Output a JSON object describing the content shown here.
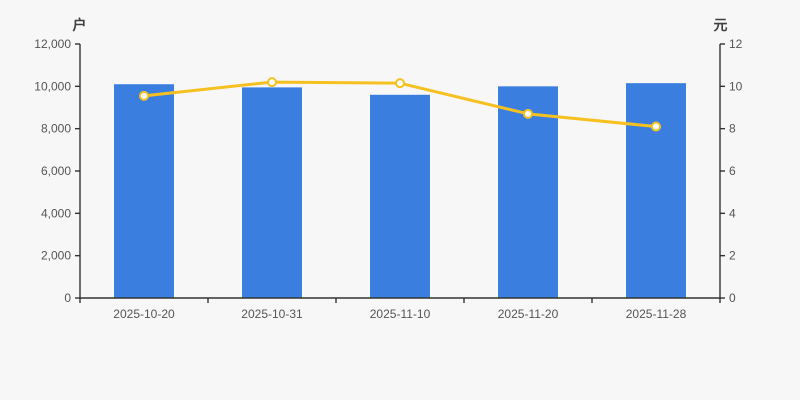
{
  "colors": {
    "background": "#f7f7f8",
    "axis": "#333333",
    "tick_label": "#555555",
    "bar": "#3a7fe0",
    "line": "#f6c120",
    "marker_fill": "#ffffff",
    "axis_title": "#404040"
  },
  "chart_data": {
    "type": "bar",
    "subtype": "bar+line dual axis",
    "title": "",
    "legend": false,
    "grid": false,
    "categories": [
      "2025-10-20",
      "2025-10-31",
      "2025-11-10",
      "2025-11-20",
      "2025-11-28"
    ],
    "series": [
      {
        "type": "bar",
        "axis": "left",
        "color": "#3a7fe0",
        "values": [
          10100,
          9950,
          9600,
          10000,
          10150
        ]
      },
      {
        "type": "line",
        "axis": "right",
        "color": "#f6c120",
        "values": [
          9.55,
          10.2,
          10.15,
          8.7,
          8.1
        ]
      }
    ],
    "left_axis": {
      "name": "户",
      "min": 0,
      "max": 12000,
      "interval": 2000,
      "tick_labels": [
        "0",
        "2,000",
        "4,000",
        "6,000",
        "8,000",
        "10,000",
        "12,000"
      ]
    },
    "right_axis": {
      "name": "元",
      "min": 0,
      "max": 12,
      "interval": 2,
      "tick_labels": [
        "0",
        "2",
        "4",
        "6",
        "8",
        "10",
        "12"
      ]
    }
  }
}
